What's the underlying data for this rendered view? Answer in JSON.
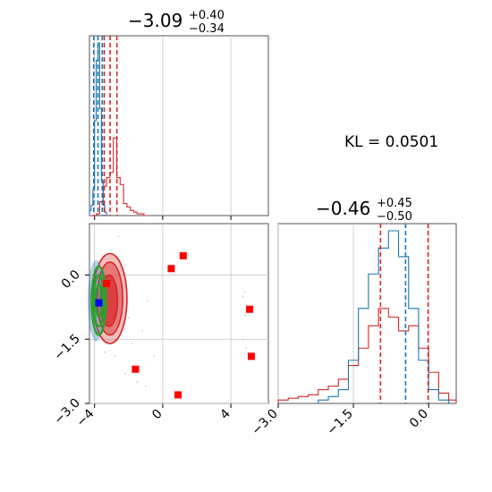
{
  "chart_data": {
    "type": "corner",
    "kl_label": "KL = 0.0501",
    "colors": {
      "red": "#d62728",
      "blue": "#1f77b4",
      "green": "#2ca02c",
      "marker_red": "#ff0000",
      "marker_blue": "#0000ff"
    },
    "param1": {
      "title_value": "−3.09",
      "title_plus": "+0.40",
      "title_minus": "−0.34",
      "xlim": [
        -4.3,
        6.2
      ],
      "ticks": [
        -4,
        0,
        4
      ],
      "tick_labels": [
        "−4",
        "0",
        "4"
      ],
      "grid": true,
      "red_quantiles": [
        -3.43,
        -3.09,
        -2.69
      ],
      "blue_quantiles": [
        -4.05,
        -3.8,
        -3.55
      ],
      "red_hist": {
        "edges": [
          -4.3,
          -4.1,
          -3.9,
          -3.7,
          -3.5,
          -3.3,
          -3.1,
          -2.9,
          -2.7,
          -2.5,
          -2.3,
          -2.1,
          -1.9,
          -1.7,
          -1.5,
          -1.3,
          -1.1,
          -0.9
        ],
        "counts": [
          0.0,
          0.0,
          0.01,
          0.08,
          0.17,
          0.22,
          0.25,
          0.45,
          0.22,
          0.18,
          0.07,
          0.05,
          0.03,
          0.02,
          0.01,
          0.01,
          0.0
        ]
      },
      "blue_hist": {
        "edges": [
          -4.3,
          -4.2,
          -4.1,
          -4.0,
          -3.9,
          -3.8,
          -3.7,
          -3.6,
          -3.5,
          -3.4,
          -3.3,
          -3.2
        ],
        "counts": [
          0.03,
          0.06,
          0.15,
          0.55,
          0.9,
          1.0,
          0.62,
          0.2,
          0.06,
          0.02,
          0.0
        ]
      }
    },
    "param2": {
      "title_value": "−0.46",
      "title_plus": "+0.45",
      "title_minus": "−0.50",
      "xlim": [
        -3.0,
        0.55
      ],
      "ticks": [
        -3.0,
        -1.5,
        0.0
      ],
      "tick_labels": [
        "−3.0",
        "−1.5",
        "0.0"
      ],
      "grid": true,
      "red_quantiles": [
        -0.96,
        -0.46,
        -0.01
      ],
      "blue_quantiles": [
        -0.9,
        -0.46,
        -0.1
      ],
      "red_hist": {
        "edges": [
          -3.0,
          -2.8,
          -2.6,
          -2.4,
          -2.2,
          -2.0,
          -1.8,
          -1.6,
          -1.4,
          -1.2,
          -1.0,
          -0.8,
          -0.6,
          -0.4,
          -0.2,
          0.0,
          0.2,
          0.4,
          0.55
        ],
        "counts": [
          0.02,
          0.03,
          0.04,
          0.05,
          0.08,
          0.1,
          0.14,
          0.22,
          0.32,
          0.45,
          0.55,
          0.5,
          0.42,
          0.45,
          0.32,
          0.18,
          0.06,
          0.02
        ]
      },
      "blue_hist": {
        "edges": [
          -2.2,
          -2.0,
          -1.8,
          -1.6,
          -1.4,
          -1.2,
          -1.0,
          -0.8,
          -0.6,
          -0.4,
          -0.2,
          0.0,
          0.2,
          0.4
        ],
        "counts": [
          0.02,
          0.04,
          0.08,
          0.25,
          0.55,
          0.75,
          0.9,
          1.0,
          0.85,
          0.55,
          0.25,
          0.08,
          0.02
        ]
      }
    },
    "scatter": {
      "xlim": [
        -4.3,
        6.2
      ],
      "ylim": [
        -3.0,
        1.2
      ],
      "yticks": [
        0.0,
        -1.5,
        -3.0
      ],
      "ytick_labels": [
        "0.0",
        "−1.5",
        "−3.0"
      ],
      "red_squares": [
        [
          -3.3,
          -0.2
        ],
        [
          0.5,
          0.15
        ],
        [
          1.2,
          0.45
        ],
        [
          5.1,
          -0.8
        ],
        [
          5.2,
          -1.9
        ],
        [
          -1.6,
          -2.2
        ],
        [
          0.9,
          -2.8
        ]
      ],
      "blue_square": [
        -3.75,
        -0.65
      ],
      "red_contours": [
        {
          "cx": -3.1,
          "cy": -0.55,
          "rx": 1.0,
          "ry": 1.05,
          "level": "outer"
        },
        {
          "cx": -3.1,
          "cy": -0.55,
          "rx": 0.75,
          "ry": 0.85,
          "level": "mid"
        },
        {
          "cx": -3.15,
          "cy": -0.6,
          "rx": 0.5,
          "ry": 0.6,
          "level": "inner"
        }
      ],
      "green_contours": [
        {
          "cx": -3.75,
          "cy": -0.6,
          "rx": 0.42,
          "ry": 0.8
        },
        {
          "cx": -3.75,
          "cy": -0.6,
          "rx": 0.3,
          "ry": 0.6
        },
        {
          "cx": -3.75,
          "cy": -0.6,
          "rx": 0.18,
          "ry": 0.38
        }
      ],
      "red_points": [
        [
          -2.4,
          -1.3
        ],
        [
          -2.0,
          -1.0
        ],
        [
          -1.8,
          -1.6
        ],
        [
          -2.8,
          -1.9
        ],
        [
          -1.5,
          -2.5
        ],
        [
          -1.2,
          -1.3
        ],
        [
          -0.9,
          -0.6
        ],
        [
          -2.2,
          -2.3
        ],
        [
          -2.6,
          0.9
        ],
        [
          -0.5,
          -1.9
        ],
        [
          -1.0,
          -2.6
        ],
        [
          -3.4,
          -1.8
        ]
      ],
      "outlier_points": [
        [
          4.8,
          -0.4
        ],
        [
          4.7,
          -0.5
        ],
        [
          4.9,
          -1.7
        ],
        [
          4.7,
          -1.5
        ],
        [
          4.85,
          -0.95
        ]
      ]
    }
  }
}
